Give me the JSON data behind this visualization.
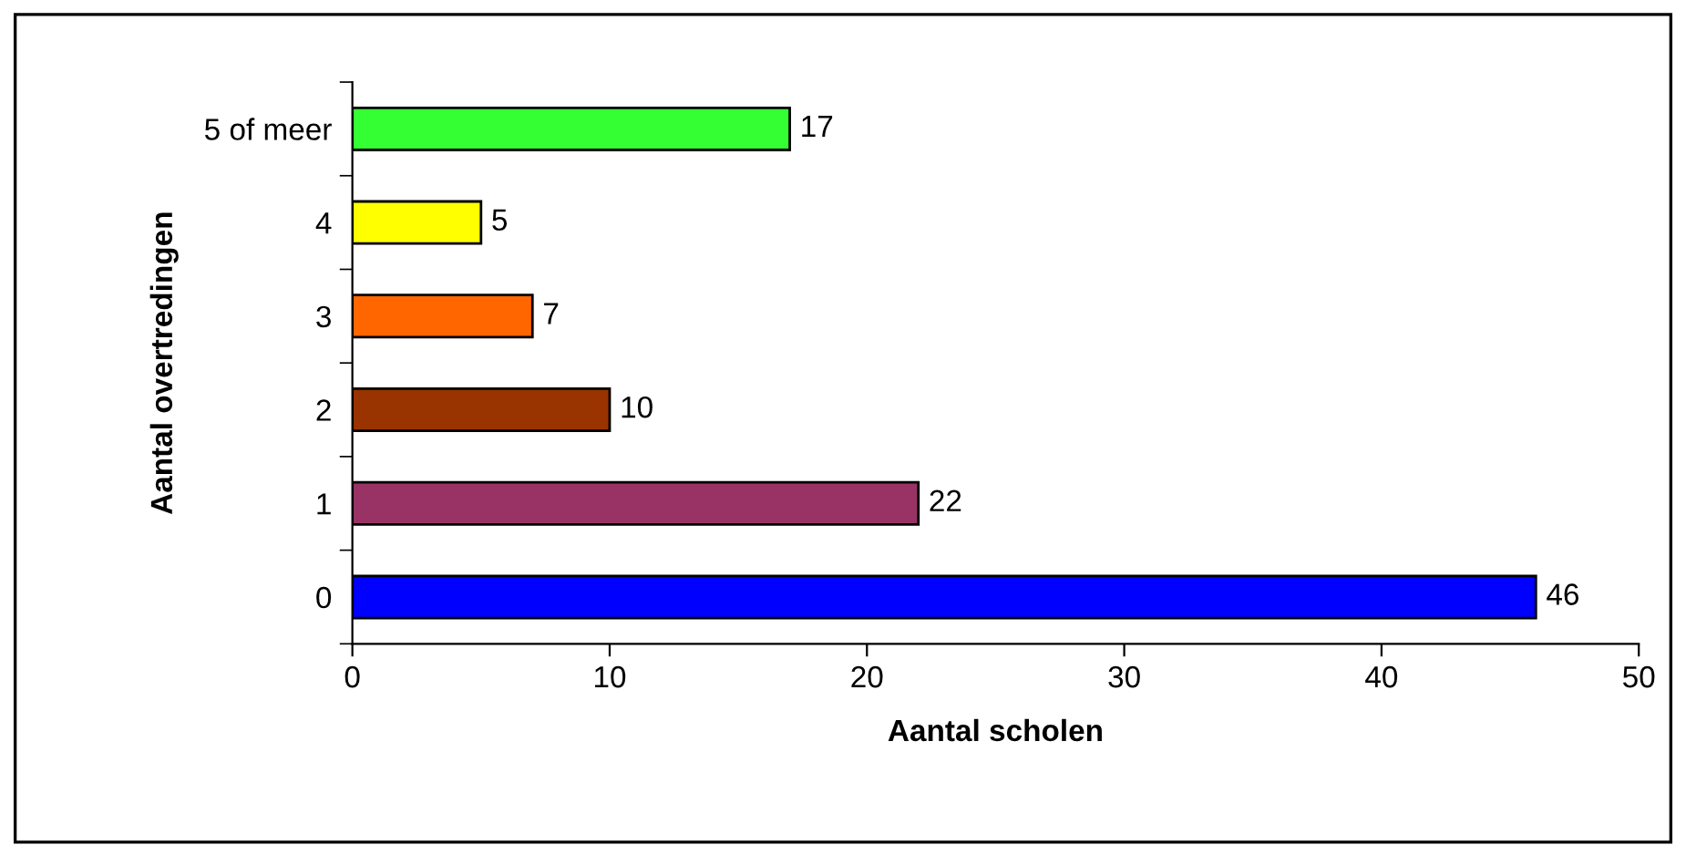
{
  "chart_data": {
    "type": "bar",
    "orientation": "horizontal",
    "xlabel": "Aantal scholen",
    "ylabel": "Aantal overtredingen",
    "categories": [
      "5 of meer",
      "4",
      "3",
      "2",
      "1",
      "0"
    ],
    "values": [
      17,
      5,
      7,
      10,
      22,
      46
    ],
    "colors": [
      "#33ff33",
      "#ffff00",
      "#ff6600",
      "#993300",
      "#993366",
      "#0000ff"
    ],
    "xlim": [
      0,
      50
    ],
    "xticks": [
      0,
      10,
      20,
      30,
      40,
      50
    ],
    "data_labels": true,
    "grid": false,
    "legend": false
  }
}
